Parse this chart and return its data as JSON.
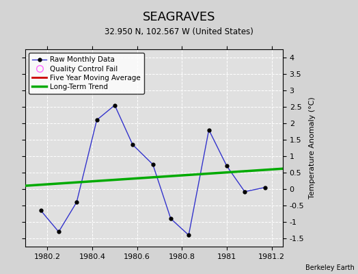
{
  "title": "SEAGRAVES",
  "subtitle": "32.950 N, 102.567 W (United States)",
  "ylabel": "Temperature Anomaly (°C)",
  "background_color": "#d4d4d4",
  "plot_bg_color": "#e0e0e0",
  "xlim": [
    1980.1,
    1981.25
  ],
  "ylim": [
    -1.75,
    4.25
  ],
  "xticks": [
    1980.2,
    1980.4,
    1980.6,
    1980.8,
    1981.0,
    1981.2
  ],
  "yticks": [
    -1.5,
    -1.0,
    -0.5,
    0.0,
    0.5,
    1.0,
    1.5,
    2.0,
    2.5,
    3.0,
    3.5,
    4.0
  ],
  "raw_x": [
    1980.17,
    1980.25,
    1980.33,
    1980.42,
    1980.5,
    1980.58,
    1980.67,
    1980.75,
    1980.83,
    1980.92,
    1981.0,
    1981.08,
    1981.17
  ],
  "raw_y": [
    -0.65,
    -1.3,
    -0.4,
    2.1,
    2.55,
    1.35,
    0.75,
    -0.9,
    -1.4,
    1.8,
    0.7,
    -0.08,
    0.05
  ],
  "trend_x": [
    1980.1,
    1981.25
  ],
  "trend_y": [
    0.1,
    0.62
  ],
  "raw_color": "#3333cc",
  "trend_color": "#00aa00",
  "moving_avg_color": "#cc0000",
  "qc_fail_color": "#ff66ff",
  "watermark": "Berkeley Earth",
  "legend_entries": [
    "Raw Monthly Data",
    "Quality Control Fail",
    "Five Year Moving Average",
    "Long-Term Trend"
  ]
}
